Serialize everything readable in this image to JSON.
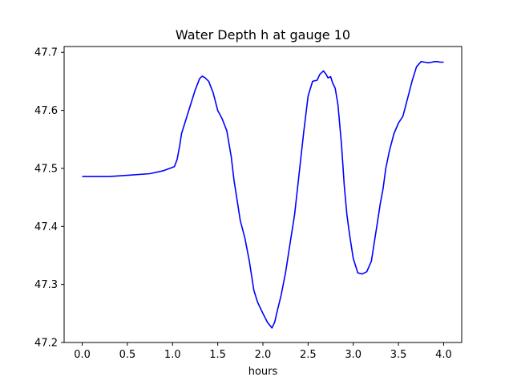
{
  "chart_data": {
    "type": "line",
    "title": "Water Depth h at gauge 10",
    "xlabel": "hours",
    "ylabel": "",
    "xlim": [
      -0.2,
      4.2
    ],
    "ylim": [
      47.2,
      47.71
    ],
    "xticks": [
      0.0,
      0.5,
      1.0,
      1.5,
      2.0,
      2.5,
      3.0,
      3.5,
      4.0
    ],
    "xtick_labels": [
      "0.0",
      "0.5",
      "1.0",
      "1.5",
      "2.0",
      "2.5",
      "3.0",
      "3.5",
      "4.0"
    ],
    "yticks": [
      47.2,
      47.3,
      47.4,
      47.5,
      47.6,
      47.7
    ],
    "ytick_labels": [
      "47.2",
      "47.3",
      "47.4",
      "47.5",
      "47.6",
      "47.7"
    ],
    "grid": false,
    "series": [
      {
        "color": "#0000ff",
        "x": [
          0.0,
          0.3,
          0.5,
          0.75,
          0.9,
          0.97,
          1.02,
          1.05,
          1.08,
          1.1,
          1.15,
          1.2,
          1.25,
          1.3,
          1.33,
          1.36,
          1.4,
          1.45,
          1.5,
          1.55,
          1.6,
          1.65,
          1.68,
          1.72,
          1.75,
          1.8,
          1.85,
          1.9,
          1.94,
          1.97,
          2.0,
          2.05,
          2.1,
          2.13,
          2.16,
          2.2,
          2.25,
          2.3,
          2.35,
          2.4,
          2.45,
          2.5,
          2.55,
          2.6,
          2.63,
          2.67,
          2.7,
          2.72,
          2.75,
          2.77,
          2.8,
          2.83,
          2.87,
          2.9,
          2.93,
          2.96,
          3.0,
          3.05,
          3.1,
          3.15,
          3.2,
          3.24,
          3.27,
          3.3,
          3.33,
          3.36,
          3.4,
          3.45,
          3.5,
          3.55,
          3.6,
          3.65,
          3.7,
          3.75,
          3.79,
          3.83,
          3.87,
          3.9,
          3.93,
          3.96,
          3.98,
          4.0
        ],
        "y": [
          47.486,
          47.486,
          47.488,
          47.491,
          47.496,
          47.5,
          47.503,
          47.515,
          47.54,
          47.56,
          47.585,
          47.61,
          47.635,
          47.655,
          47.659,
          47.656,
          47.65,
          47.63,
          47.6,
          47.585,
          47.565,
          47.52,
          47.48,
          47.44,
          47.41,
          47.38,
          47.34,
          47.29,
          47.27,
          47.26,
          47.25,
          47.235,
          47.225,
          47.235,
          47.255,
          47.28,
          47.32,
          47.37,
          47.42,
          47.49,
          47.56,
          47.625,
          47.65,
          47.652,
          47.662,
          47.668,
          47.662,
          47.656,
          47.658,
          47.648,
          47.638,
          47.61,
          47.54,
          47.47,
          47.42,
          47.385,
          47.345,
          47.32,
          47.318,
          47.322,
          47.34,
          47.38,
          47.41,
          47.44,
          47.465,
          47.5,
          47.53,
          47.56,
          47.578,
          47.59,
          47.62,
          47.65,
          47.675,
          47.684,
          47.683,
          47.682,
          47.683,
          47.684,
          47.684,
          47.683,
          47.683,
          47.683
        ]
      }
    ]
  }
}
